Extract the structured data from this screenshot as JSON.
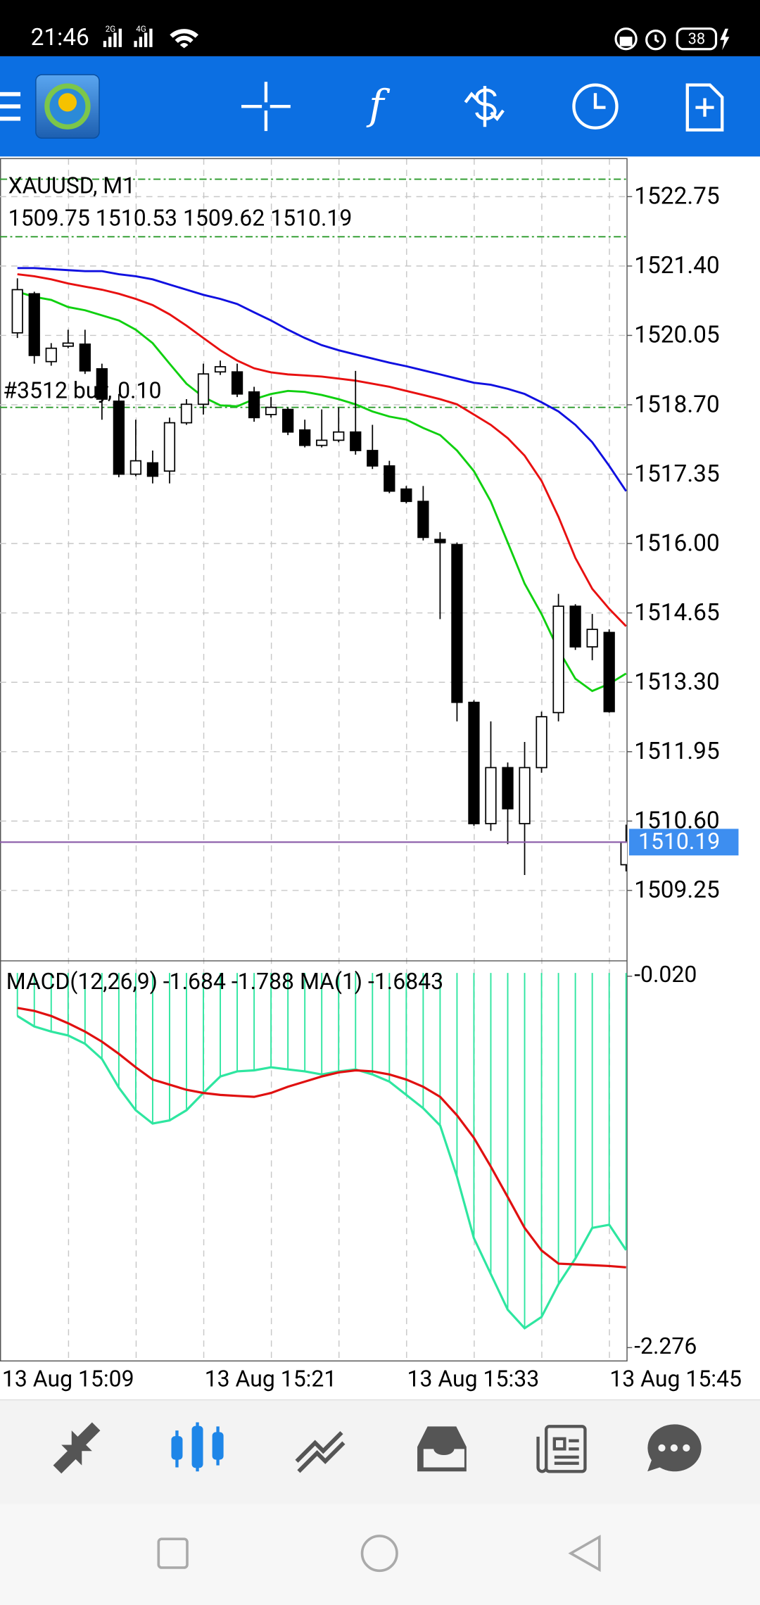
{
  "status_bar": {
    "time": "21:46",
    "net1": "2G",
    "net2": "4G",
    "battery": "38"
  },
  "chart": {
    "symbol": "XAUUSD, M1",
    "ylim": [
      1507.9,
      1523.49
    ],
    "yticks": [
      {
        "value": 1522.75,
        "label": "1522.75"
      },
      {
        "value": 1521.4,
        "label": "1521.40"
      },
      {
        "value": 1520.05,
        "label": "1520.05"
      },
      {
        "value": 1518.7,
        "label": "1518.70"
      },
      {
        "value": 1517.35,
        "label": "1517.35"
      },
      {
        "value": 1516,
        "label": "1516.00"
      },
      {
        "value": 1514.65,
        "label": "1514.65"
      },
      {
        "value": 1513.3,
        "label": "1513.30"
      },
      {
        "value": 1511.95,
        "label": "1511.95"
      },
      {
        "value": 1510.6,
        "label": "1510.60"
      },
      {
        "value": 1509.25,
        "label": "1509.25"
      }
    ],
    "up_color": "#ffffff",
    "down_color": "#000000",
    "candles": [
      {
        "o": 1520.1,
        "h": 1521.16,
        "l": 1520.0,
        "c": 1520.94
      },
      {
        "o": 1520.86,
        "h": 1520.9,
        "l": 1519.5,
        "c": 1519.66
      },
      {
        "o": 1519.54,
        "h": 1519.9,
        "l": 1519.46,
        "c": 1519.8
      },
      {
        "o": 1519.84,
        "h": 1520.16,
        "l": 1519.8,
        "c": 1519.9
      },
      {
        "o": 1519.88,
        "h": 1520.16,
        "l": 1519.3,
        "c": 1519.36
      },
      {
        "o": 1519.4,
        "h": 1519.5,
        "l": 1518.41,
        "c": 1518.81
      },
      {
        "o": 1518.77,
        "h": 1518.91,
        "l": 1517.29,
        "c": 1517.35
      },
      {
        "o": 1517.35,
        "h": 1518.41,
        "l": 1517.31,
        "c": 1517.61
      },
      {
        "o": 1517.57,
        "h": 1517.81,
        "l": 1517.17,
        "c": 1517.31
      },
      {
        "o": 1517.41,
        "h": 1518.45,
        "l": 1517.17,
        "c": 1518.35
      },
      {
        "o": 1518.35,
        "h": 1518.81,
        "l": 1518.31,
        "c": 1518.71
      },
      {
        "o": 1518.71,
        "h": 1519.5,
        "l": 1518.51,
        "c": 1519.3
      },
      {
        "o": 1519.34,
        "h": 1519.56,
        "l": 1519.28,
        "c": 1519.44
      },
      {
        "o": 1519.34,
        "h": 1519.5,
        "l": 1518.85,
        "c": 1518.91
      },
      {
        "o": 1518.95,
        "h": 1519.05,
        "l": 1518.37,
        "c": 1518.45
      },
      {
        "o": 1518.51,
        "h": 1518.85,
        "l": 1518.45,
        "c": 1518.65
      },
      {
        "o": 1518.61,
        "h": 1518.65,
        "l": 1518.11,
        "c": 1518.17
      },
      {
        "o": 1518.21,
        "h": 1518.41,
        "l": 1517.87,
        "c": 1517.91
      },
      {
        "o": 1517.91,
        "h": 1518.61,
        "l": 1517.87,
        "c": 1518.01
      },
      {
        "o": 1518.01,
        "h": 1518.65,
        "l": 1517.97,
        "c": 1518.17
      },
      {
        "o": 1518.17,
        "h": 1519.36,
        "l": 1517.73,
        "c": 1517.81
      },
      {
        "o": 1517.81,
        "h": 1518.31,
        "l": 1517.45,
        "c": 1517.51
      },
      {
        "o": 1517.51,
        "h": 1517.61,
        "l": 1516.98,
        "c": 1517.02
      },
      {
        "o": 1517.06,
        "h": 1517.12,
        "l": 1516.78,
        "c": 1516.82
      },
      {
        "o": 1516.82,
        "h": 1517.12,
        "l": 1516.06,
        "c": 1516.12
      },
      {
        "o": 1516.08,
        "h": 1516.22,
        "l": 1514.53,
        "c": 1516.02
      },
      {
        "o": 1515.98,
        "h": 1516.02,
        "l": 1512.54,
        "c": 1512.91
      },
      {
        "o": 1512.91,
        "h": 1512.95,
        "l": 1510.51,
        "c": 1510.55
      },
      {
        "o": 1510.55,
        "h": 1512.54,
        "l": 1510.41,
        "c": 1511.64
      },
      {
        "o": 1511.64,
        "h": 1511.74,
        "l": 1510.15,
        "c": 1510.84
      },
      {
        "o": 1510.55,
        "h": 1512.14,
        "l": 1509.55,
        "c": 1511.64
      },
      {
        "o": 1511.64,
        "h": 1512.73,
        "l": 1511.54,
        "c": 1512.63
      },
      {
        "o": 1512.71,
        "h": 1515.02,
        "l": 1512.54,
        "c": 1514.78
      },
      {
        "o": 1514.78,
        "h": 1514.82,
        "l": 1513.93,
        "c": 1513.99
      },
      {
        "o": 1513.99,
        "h": 1514.63,
        "l": 1513.73,
        "c": 1514.33
      },
      {
        "o": 1514.27,
        "h": 1514.33,
        "l": 1512.71,
        "c": 1512.73
      },
      {
        "o": 1509.75,
        "h": 1510.53,
        "l": 1509.62,
        "c": 1510.19
      }
    ],
    "ma": [
      {
        "color": "#1010e0",
        "values": [
          1521.36,
          1521.36,
          1521.34,
          1521.32,
          1521.3,
          1521.3,
          1521.24,
          1521.2,
          1521.14,
          1521.04,
          1520.94,
          1520.84,
          1520.76,
          1520.66,
          1520.5,
          1520.34,
          1520.16,
          1520.0,
          1519.86,
          1519.76,
          1519.68,
          1519.6,
          1519.52,
          1519.45,
          1519.37,
          1519.29,
          1519.21,
          1519.13,
          1519.09,
          1519.01,
          1518.91,
          1518.75,
          1518.57,
          1518.31,
          1517.97,
          1517.51,
          1517.02
        ]
      },
      {
        "color": "#e81010",
        "values": [
          1521.24,
          1521.2,
          1521.14,
          1521.06,
          1521.0,
          1520.94,
          1520.86,
          1520.76,
          1520.64,
          1520.46,
          1520.24,
          1520.0,
          1519.76,
          1519.56,
          1519.41,
          1519.33,
          1519.29,
          1519.27,
          1519.25,
          1519.21,
          1519.17,
          1519.11,
          1519.05,
          1518.97,
          1518.89,
          1518.81,
          1518.71,
          1518.51,
          1518.31,
          1518.05,
          1517.71,
          1517.22,
          1516.52,
          1515.72,
          1515.12,
          1514.73,
          1514.39
        ]
      },
      {
        "color": "#10d010",
        "values": [
          1520.9,
          1520.8,
          1520.74,
          1520.6,
          1520.54,
          1520.44,
          1520.34,
          1520.16,
          1519.9,
          1519.5,
          1519.11,
          1518.85,
          1518.69,
          1518.67,
          1518.81,
          1518.91,
          1518.97,
          1518.95,
          1518.89,
          1518.81,
          1518.71,
          1518.57,
          1518.47,
          1518.41,
          1518.25,
          1518.11,
          1517.81,
          1517.41,
          1516.82,
          1516.02,
          1515.22,
          1514.63,
          1513.93,
          1513.37,
          1513.13,
          1513.27,
          1513.47
        ]
      }
    ],
    "levels": [
      1523.09,
      1521.97
    ],
    "level_color": "#2a9a2a",
    "order": {
      "label": "#3512 buy, 0.10",
      "price": 1518.65
    },
    "bid_color": "#8a5aa8",
    "tag_color": "#3d8ef0",
    "xlabels": [
      "13 Aug 15:09",
      "13 Aug 15:21",
      "13 Aug 15:33",
      "13 Aug 15:45"
    ]
  },
  "macd": {
    "label": "MACD(12,26,9)",
    "ma_label": "MA(1)",
    "ma_value": -1.6843,
    "ylim": [
      -2.357,
      0.067
    ],
    "yticks": [
      {
        "value": -0.02,
        "label": "-0.020"
      },
      -2.276
    ],
    "main": {
      "color": "#2ee6a0",
      "values": [
        -0.262,
        -0.325,
        -0.356,
        -0.38,
        -0.43,
        -0.523,
        -0.697,
        -0.834,
        -0.915,
        -0.896,
        -0.834,
        -0.729,
        -0.629,
        -0.598,
        -0.592,
        -0.573,
        -0.586,
        -0.598,
        -0.617,
        -0.598,
        -0.586,
        -0.617,
        -0.66,
        -0.741,
        -0.822,
        -0.927,
        -1.238,
        -1.611,
        -1.829,
        -2.046,
        -2.158,
        -2.09,
        -1.891,
        -1.735,
        -1.549,
        -1.53,
        -1.684
      ]
    },
    "signal": {
      "color": "#e01010",
      "values": [
        -0.213,
        -0.231,
        -0.262,
        -0.306,
        -0.356,
        -0.418,
        -0.492,
        -0.573,
        -0.648,
        -0.679,
        -0.71,
        -0.729,
        -0.741,
        -0.747,
        -0.753,
        -0.729,
        -0.691,
        -0.66,
        -0.629,
        -0.604,
        -0.592,
        -0.598,
        -0.617,
        -0.648,
        -0.691,
        -0.753,
        -0.865,
        -1.002,
        -1.176,
        -1.362,
        -1.549,
        -1.686,
        -1.766,
        -1.77,
        -1.775,
        -1.78,
        -1.788
      ]
    }
  }
}
